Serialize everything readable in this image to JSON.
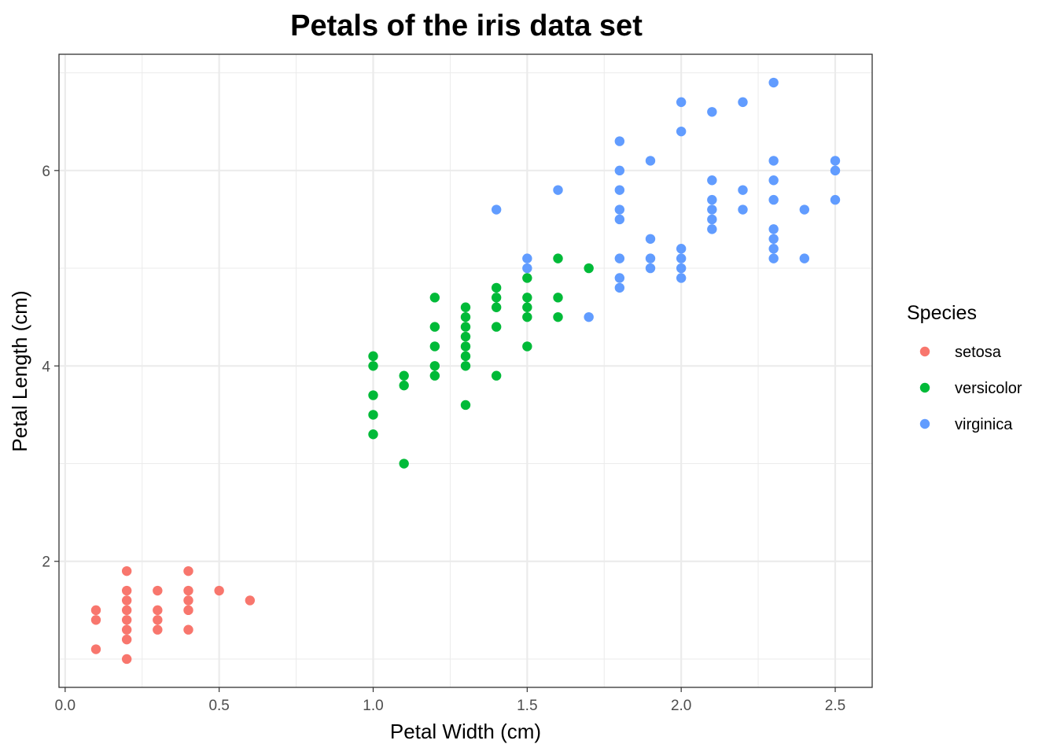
{
  "chart_data": {
    "type": "scatter",
    "title": "Petals of the iris data set",
    "xlabel": "Petal Width (cm)",
    "ylabel": "Petal Length (cm)",
    "xlim": [
      -0.02,
      2.62
    ],
    "ylim": [
      0.71,
      7.19
    ],
    "x_ticks": [
      0.0,
      0.5,
      1.0,
      1.5,
      2.0,
      2.5
    ],
    "x_tick_labels": [
      "0.0",
      "0.5",
      "1.0",
      "1.5",
      "2.0",
      "2.5"
    ],
    "y_ticks": [
      2,
      4,
      6
    ],
    "y_tick_labels": [
      "2",
      "4",
      "6"
    ],
    "grid": true,
    "legend": {
      "title": "Species",
      "placement": "right"
    },
    "series": [
      {
        "name": "setosa",
        "color": "#F8766D",
        "points": [
          [
            0.1,
            1.1
          ],
          [
            0.1,
            1.4
          ],
          [
            0.1,
            1.5
          ],
          [
            0.2,
            1.0
          ],
          [
            0.2,
            1.2
          ],
          [
            0.2,
            1.3
          ],
          [
            0.2,
            1.4
          ],
          [
            0.2,
            1.5
          ],
          [
            0.2,
            1.6
          ],
          [
            0.2,
            1.7
          ],
          [
            0.2,
            1.9
          ],
          [
            0.3,
            1.3
          ],
          [
            0.3,
            1.4
          ],
          [
            0.3,
            1.5
          ],
          [
            0.3,
            1.7
          ],
          [
            0.4,
            1.3
          ],
          [
            0.4,
            1.5
          ],
          [
            0.4,
            1.6
          ],
          [
            0.4,
            1.7
          ],
          [
            0.4,
            1.9
          ],
          [
            0.5,
            1.7
          ],
          [
            0.6,
            1.6
          ]
        ]
      },
      {
        "name": "versicolor",
        "color": "#00BA38",
        "points": [
          [
            1.0,
            3.3
          ],
          [
            1.0,
            3.5
          ],
          [
            1.0,
            3.7
          ],
          [
            1.0,
            4.0
          ],
          [
            1.0,
            4.1
          ],
          [
            1.1,
            3.0
          ],
          [
            1.1,
            3.8
          ],
          [
            1.1,
            3.9
          ],
          [
            1.2,
            3.9
          ],
          [
            1.2,
            4.0
          ],
          [
            1.2,
            4.2
          ],
          [
            1.2,
            4.4
          ],
          [
            1.2,
            4.7
          ],
          [
            1.3,
            3.6
          ],
          [
            1.3,
            4.0
          ],
          [
            1.3,
            4.1
          ],
          [
            1.3,
            4.2
          ],
          [
            1.3,
            4.3
          ],
          [
            1.3,
            4.4
          ],
          [
            1.3,
            4.5
          ],
          [
            1.3,
            4.6
          ],
          [
            1.4,
            3.9
          ],
          [
            1.4,
            4.4
          ],
          [
            1.4,
            4.6
          ],
          [
            1.4,
            4.7
          ],
          [
            1.4,
            4.8
          ],
          [
            1.5,
            4.2
          ],
          [
            1.5,
            4.5
          ],
          [
            1.5,
            4.6
          ],
          [
            1.5,
            4.7
          ],
          [
            1.5,
            4.9
          ],
          [
            1.6,
            4.5
          ],
          [
            1.6,
            4.7
          ],
          [
            1.6,
            5.1
          ],
          [
            1.7,
            5.0
          ]
        ]
      },
      {
        "name": "virginica",
        "color": "#619CFF",
        "points": [
          [
            1.4,
            5.6
          ],
          [
            1.5,
            5.0
          ],
          [
            1.5,
            5.1
          ],
          [
            1.6,
            5.8
          ],
          [
            1.7,
            4.5
          ],
          [
            1.8,
            4.8
          ],
          [
            1.8,
            4.9
          ],
          [
            1.8,
            5.1
          ],
          [
            1.8,
            5.5
          ],
          [
            1.8,
            5.6
          ],
          [
            1.8,
            5.8
          ],
          [
            1.8,
            6.0
          ],
          [
            1.8,
            6.3
          ],
          [
            1.9,
            5.0
          ],
          [
            1.9,
            5.1
          ],
          [
            1.9,
            5.3
          ],
          [
            1.9,
            6.1
          ],
          [
            2.0,
            4.9
          ],
          [
            2.0,
            5.0
          ],
          [
            2.0,
            5.1
          ],
          [
            2.0,
            5.2
          ],
          [
            2.0,
            6.4
          ],
          [
            2.0,
            6.7
          ],
          [
            2.1,
            5.4
          ],
          [
            2.1,
            5.5
          ],
          [
            2.1,
            5.6
          ],
          [
            2.1,
            5.7
          ],
          [
            2.1,
            5.9
          ],
          [
            2.1,
            6.6
          ],
          [
            2.2,
            5.6
          ],
          [
            2.2,
            5.8
          ],
          [
            2.2,
            6.7
          ],
          [
            2.3,
            5.1
          ],
          [
            2.3,
            5.2
          ],
          [
            2.3,
            5.3
          ],
          [
            2.3,
            5.4
          ],
          [
            2.3,
            5.7
          ],
          [
            2.3,
            5.9
          ],
          [
            2.3,
            6.1
          ],
          [
            2.3,
            6.9
          ],
          [
            2.4,
            5.1
          ],
          [
            2.4,
            5.6
          ],
          [
            2.5,
            5.7
          ],
          [
            2.5,
            6.0
          ],
          [
            2.5,
            6.1
          ]
        ]
      }
    ]
  }
}
